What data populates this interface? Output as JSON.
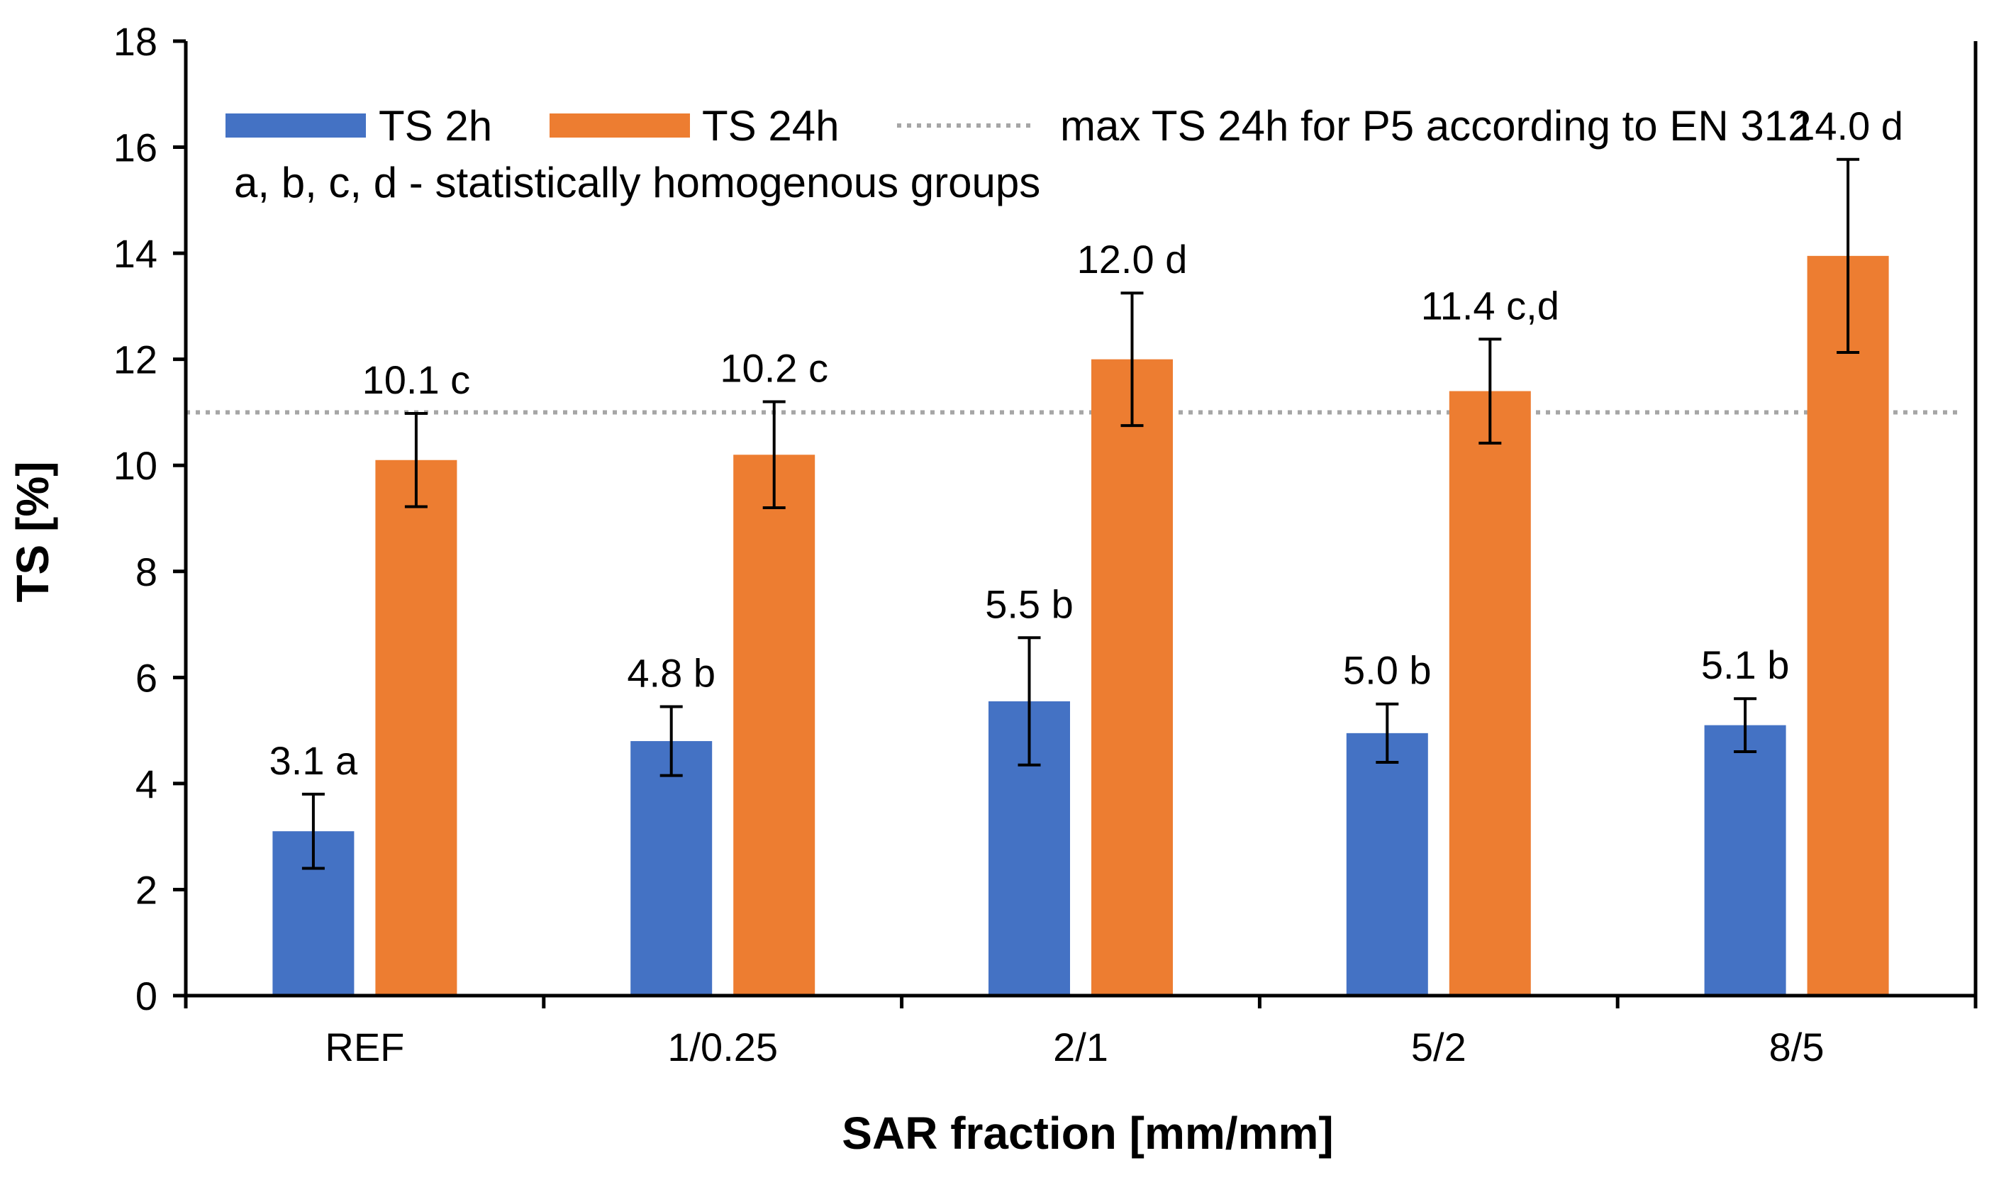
{
  "chart_data": {
    "type": "bar",
    "title": "",
    "xlabel": "SAR fraction [mm/mm]",
    "ylabel": "TS [%]",
    "ylim": [
      0,
      18
    ],
    "yticks": [
      0,
      2,
      4,
      6,
      8,
      10,
      12,
      14,
      16,
      18
    ],
    "grid": false,
    "categories": [
      "REF",
      "1/0.25",
      "2/1",
      "5/2",
      "8/5"
    ],
    "series": [
      {
        "name": "TS 2h",
        "color": "#4472C4",
        "values": [
          3.1,
          4.8,
          5.55,
          4.95,
          5.1
        ],
        "errors": [
          0.7,
          0.65,
          1.2,
          0.55,
          0.5
        ],
        "labels": [
          "3.1 a",
          "4.8 b",
          "5.5 b",
          "5.0 b",
          "5.1 b"
        ]
      },
      {
        "name": "TS 24h",
        "color": "#ED7D31",
        "values": [
          10.1,
          10.2,
          12.0,
          11.4,
          13.95
        ],
        "errors": [
          0.88,
          1.0,
          1.25,
          0.98,
          1.82
        ],
        "labels": [
          "10.1 c",
          "10.2 c",
          "12.0 d",
          "11.4 c,d",
          "14.0 d"
        ]
      }
    ],
    "reference_line": {
      "label": "max TS 24h for P5 according to EN 312",
      "value": 11,
      "color": "#A6A6A6",
      "style": "dotted"
    },
    "legend_placement": "top",
    "annotation": "a, b, c, d - statistically homogenous groups"
  }
}
